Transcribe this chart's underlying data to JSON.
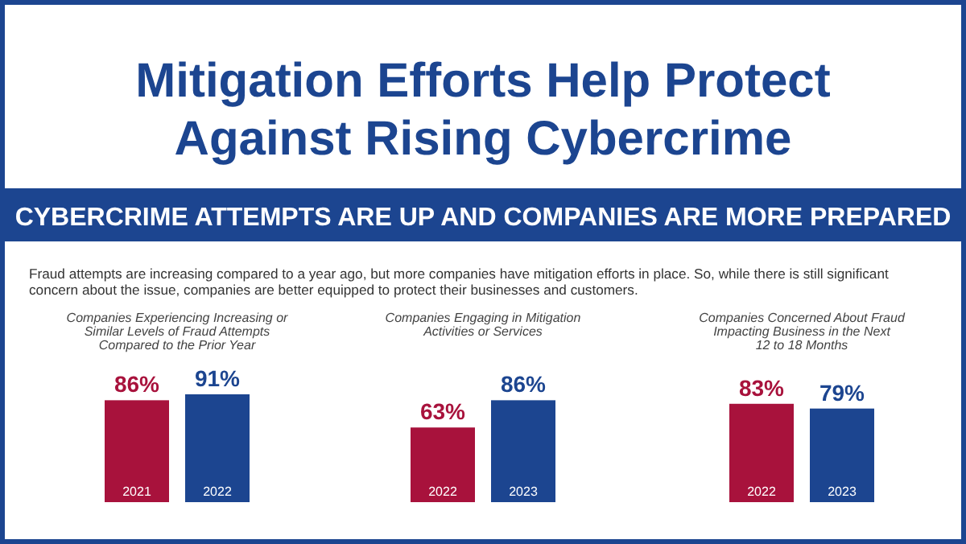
{
  "chart_data": [
    {
      "type": "other",
      "title": "Mitigation Efforts Help Protect\nAgainst Rising Cybercrime",
      "subtitle": "CYBERCRIME ATTEMPTS ARE UP AND COMPANIES ARE MORE PREPARED",
      "annotations": [
        "Fraud attempts are increasing compared to a year ago, but more companies have mitigation efforts in place. So, while there is still significant\nconcern about the issue, companies are better equipped to protect their businesses and customers."
      ]
    },
    {
      "type": "bar",
      "title": "Companies Experiencing Increasing or\nSimilar Levels of Fraud Attempts\nCompared to the Prior Year",
      "categories": [
        "2021",
        "2022"
      ],
      "values": [
        86,
        91
      ],
      "value_labels": [
        "86%",
        "91%"
      ],
      "colors": [
        "#a8123c",
        "#1c4590"
      ],
      "tick_labels": "x"
    },
    {
      "type": "bar",
      "title": "Companies Engaging in Mitigation\nActivities or Services",
      "categories": [
        "2022",
        "2023"
      ],
      "values": [
        63,
        86
      ],
      "value_labels": [
        "63%",
        "86%"
      ],
      "colors": [
        "#a8123c",
        "#1c4590"
      ],
      "tick_labels": "x"
    },
    {
      "type": "bar",
      "title": "Companies Concerned About Fraud\nImpacting Business in the Next\n12 to 18 Months",
      "categories": [
        "2022",
        "2023"
      ],
      "values": [
        83,
        79
      ],
      "value_labels": [
        "83%",
        "79%"
      ],
      "colors": [
        "#a8123c",
        "#1c4590"
      ],
      "tick_labels": "x"
    }
  ]
}
